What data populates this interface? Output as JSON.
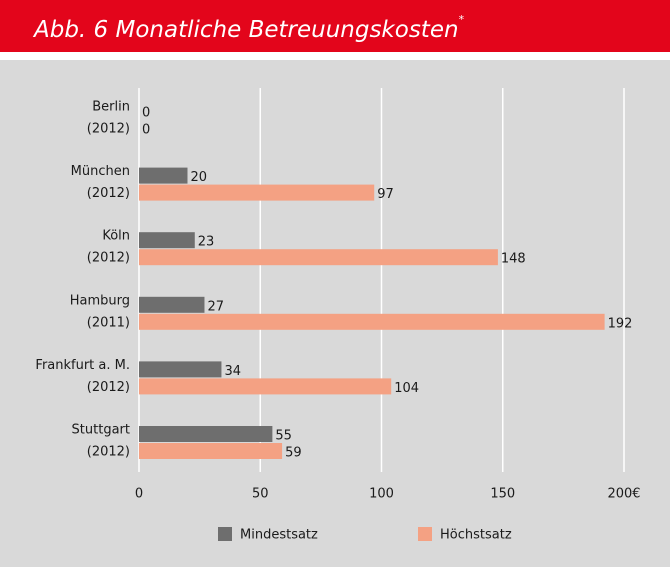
{
  "chart_data": {
    "type": "bar",
    "orientation": "horizontal",
    "title": "Abb. 6  Monatliche Betreuungskosten",
    "title_mark": "*",
    "categories": [
      [
        "Berlin",
        "(2012)"
      ],
      [
        "München",
        "(2012)"
      ],
      [
        "Köln",
        "(2012)"
      ],
      [
        "Hamburg",
        "(2011)"
      ],
      [
        "Frankfurt a. M.",
        "(2012)"
      ],
      [
        "Stuttgart",
        "(2012)"
      ]
    ],
    "series": [
      {
        "name": "Mindestsatz",
        "color": "#6e6e6e",
        "values": [
          0,
          20,
          23,
          27,
          34,
          55
        ]
      },
      {
        "name": "Höchstsatz",
        "color": "#f4a183",
        "values": [
          0,
          97,
          148,
          192,
          104,
          59
        ]
      }
    ],
    "xlim": [
      0,
      200
    ],
    "xticks": [
      0,
      50,
      100,
      150,
      {
        "value": 200,
        "label": "200€"
      }
    ],
    "grid": true
  }
}
